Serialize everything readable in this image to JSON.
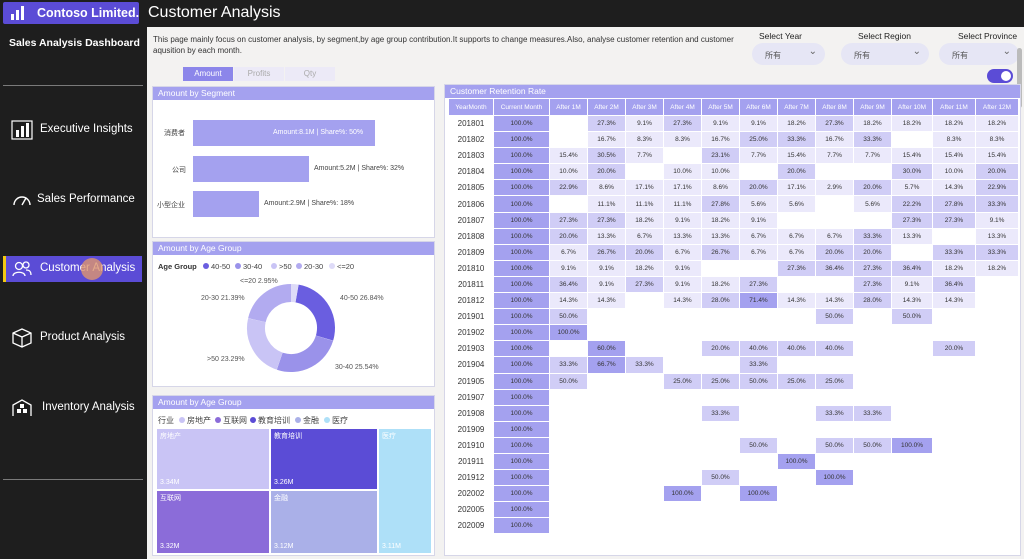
{
  "app": {
    "logo_text": "Contoso Limited.",
    "dashboard_title": "Sales Analysis Dashboard",
    "page_title": "Customer Analysis"
  },
  "colors": {
    "accent": "#5b4cd6",
    "sidebar": "#1e1e1e",
    "panel_header": "#a4a1ef",
    "active_marker": "#f2c811"
  },
  "nav": [
    {
      "label": "Executive Insights",
      "icon": "bar-chart-icon"
    },
    {
      "label": "Sales Performance",
      "icon": "gauge-icon"
    },
    {
      "label": "Customer Analysis",
      "icon": "users-icon",
      "active": true
    },
    {
      "label": "Product Analysis",
      "icon": "box-icon"
    },
    {
      "label": "Inventory Analysis",
      "icon": "warehouse-icon"
    }
  ],
  "description": "This page mainly focus on customer analysis, by segment,by age group contribution.It supports to change measures.Also, analyse customer retention and customer aqusition by each month.",
  "slicers": [
    {
      "label": "Select Year",
      "value": "所有"
    },
    {
      "label": "Select Region",
      "value": "所有"
    },
    {
      "label": "Select Province",
      "value": "所有"
    }
  ],
  "measure_tabs": [
    "Amount",
    "Profits",
    "Qty"
  ],
  "segment": {
    "title": "Amount by Segment",
    "items": [
      {
        "label": "消费者",
        "value_text": "Amount:8.1M | Share%: 50%",
        "share": 0.5
      },
      {
        "label": "公司",
        "value_text": "Amount:5.2M | Share%: 32%",
        "share": 0.32
      },
      {
        "label": "小型企业",
        "value_text": "Amount:2.9M | Share%: 18%",
        "share": 0.18
      }
    ]
  },
  "age": {
    "title": "Amount by Age Group",
    "legend_title": "Age Group",
    "legend": [
      {
        "label": "40-50",
        "color": "#6a5ee0"
      },
      {
        "label": "30-40",
        "color": "#9a92ea"
      },
      {
        "label": ">50",
        "color": "#c9c4f5"
      },
      {
        "label": "20-30",
        "color": "#b2abf0"
      },
      {
        "label": "<=20",
        "color": "#dedbf8"
      }
    ],
    "labels": {
      "d1": "<=20 2.95%",
      "d2": "40-50 26.84%",
      "d3": "20-30 21.39%",
      "d4": "30-40 25.54%",
      "d5": ">50 23.29%"
    }
  },
  "industry": {
    "title": "Amount by Age Group",
    "legend_title": "行业",
    "legend": [
      {
        "label": "房地产",
        "color": "#c9c4f5"
      },
      {
        "label": "互联网",
        "color": "#8b6cd9"
      },
      {
        "label": "教育培训",
        "color": "#5b4cd6"
      },
      {
        "label": "金融",
        "color": "#aab0e8"
      },
      {
        "label": "医疗",
        "color": "#aee0f8"
      }
    ],
    "cells": [
      {
        "name": "房地产",
        "value": "3.34M"
      },
      {
        "name": "教育培训",
        "value": "3.26M"
      },
      {
        "name": "医疗",
        "value": "3.11M"
      },
      {
        "name": "互联网",
        "value": "3.32M"
      },
      {
        "name": "金融",
        "value": "3.12M"
      }
    ]
  },
  "retention": {
    "title": "Customer Retention Rate",
    "headers": [
      "YearMonth",
      "Current Month",
      "After 1M",
      "After 2M",
      "After 3M",
      "After 4M",
      "After 5M",
      "After 6M",
      "After 7M",
      "After 8M",
      "After 9M",
      "After 10M",
      "After 11M",
      "After 12M"
    ],
    "rows": [
      [
        "201801",
        "100.0%",
        "",
        "27.3%",
        "9.1%",
        "27.3%",
        "9.1%",
        "9.1%",
        "18.2%",
        "27.3%",
        "18.2%",
        "18.2%",
        "18.2%",
        "18.2%"
      ],
      [
        "201802",
        "100.0%",
        "",
        "16.7%",
        "8.3%",
        "8.3%",
        "16.7%",
        "25.0%",
        "33.3%",
        "16.7%",
        "33.3%",
        "",
        "8.3%",
        "8.3%"
      ],
      [
        "201803",
        "100.0%",
        "15.4%",
        "30.5%",
        "7.7%",
        "",
        "23.1%",
        "7.7%",
        "15.4%",
        "7.7%",
        "7.7%",
        "15.4%",
        "15.4%",
        "15.4%"
      ],
      [
        "201804",
        "100.0%",
        "10.0%",
        "20.0%",
        "",
        "10.0%",
        "10.0%",
        "",
        "20.0%",
        "",
        "",
        "30.0%",
        "10.0%",
        "20.0%"
      ],
      [
        "201805",
        "100.0%",
        "22.9%",
        "8.6%",
        "17.1%",
        "17.1%",
        "8.6%",
        "20.0%",
        "17.1%",
        "2.9%",
        "20.0%",
        "5.7%",
        "14.3%",
        "22.9%"
      ],
      [
        "201806",
        "100.0%",
        "",
        "11.1%",
        "11.1%",
        "11.1%",
        "27.8%",
        "5.6%",
        "5.6%",
        "",
        "5.6%",
        "22.2%",
        "27.8%",
        "33.3%"
      ],
      [
        "201807",
        "100.0%",
        "27.3%",
        "27.3%",
        "18.2%",
        "9.1%",
        "18.2%",
        "9.1%",
        "",
        "",
        "",
        "27.3%",
        "27.3%",
        "9.1%"
      ],
      [
        "201808",
        "100.0%",
        "20.0%",
        "13.3%",
        "6.7%",
        "13.3%",
        "13.3%",
        "6.7%",
        "6.7%",
        "6.7%",
        "33.3%",
        "13.3%",
        "",
        "13.3%"
      ],
      [
        "201809",
        "100.0%",
        "6.7%",
        "26.7%",
        "20.0%",
        "6.7%",
        "26.7%",
        "6.7%",
        "6.7%",
        "20.0%",
        "20.0%",
        "",
        "33.3%",
        "33.3%"
      ],
      [
        "201810",
        "100.0%",
        "9.1%",
        "9.1%",
        "18.2%",
        "9.1%",
        "",
        "",
        "27.3%",
        "36.4%",
        "27.3%",
        "36.4%",
        "18.2%",
        "18.2%"
      ],
      [
        "201811",
        "100.0%",
        "36.4%",
        "9.1%",
        "27.3%",
        "9.1%",
        "18.2%",
        "27.3%",
        "",
        "",
        "27.3%",
        "9.1%",
        "36.4%",
        ""
      ],
      [
        "201812",
        "100.0%",
        "14.3%",
        "14.3%",
        "",
        "14.3%",
        "28.0%",
        "71.4%",
        "14.3%",
        "14.3%",
        "28.0%",
        "14.3%",
        "14.3%",
        ""
      ],
      [
        "201901",
        "100.0%",
        "50.0%",
        "",
        "",
        "",
        "",
        "",
        "",
        "50.0%",
        "",
        "50.0%",
        "",
        ""
      ],
      [
        "201902",
        "100.0%",
        "100.0%",
        "",
        "",
        "",
        "",
        "",
        "",
        "",
        "",
        "",
        "",
        ""
      ],
      [
        "201903",
        "100.0%",
        "",
        "60.0%",
        "",
        "",
        "20.0%",
        "40.0%",
        "40.0%",
        "40.0%",
        "",
        "",
        "20.0%",
        ""
      ],
      [
        "201904",
        "100.0%",
        "33.3%",
        "66.7%",
        "33.3%",
        "",
        "",
        "33.3%",
        "",
        "",
        "",
        "",
        "",
        ""
      ],
      [
        "201905",
        "100.0%",
        "50.0%",
        "",
        "",
        "25.0%",
        "25.0%",
        "50.0%",
        "25.0%",
        "25.0%",
        "",
        "",
        "",
        ""
      ],
      [
        "201907",
        "100.0%",
        "",
        "",
        "",
        "",
        "",
        "",
        "",
        "",
        "",
        "",
        "",
        ""
      ],
      [
        "201908",
        "100.0%",
        "",
        "",
        "",
        "",
        "33.3%",
        "",
        "",
        "33.3%",
        "33.3%",
        "",
        "",
        ""
      ],
      [
        "201909",
        "100.0%",
        "",
        "",
        "",
        "",
        "",
        "",
        "",
        "",
        "",
        "",
        "",
        ""
      ],
      [
        "201910",
        "100.0%",
        "",
        "",
        "",
        "",
        "",
        "50.0%",
        "",
        "50.0%",
        "50.0%",
        "100.0%",
        "",
        ""
      ],
      [
        "201911",
        "100.0%",
        "",
        "",
        "",
        "",
        "",
        "",
        "100.0%",
        "",
        "",
        "",
        "",
        ""
      ],
      [
        "201912",
        "100.0%",
        "",
        "",
        "",
        "",
        "50.0%",
        "",
        "",
        "100.0%",
        "",
        "",
        "",
        ""
      ],
      [
        "202002",
        "100.0%",
        "",
        "",
        "",
        "100.0%",
        "",
        "100.0%",
        "",
        "",
        "",
        "",
        "",
        ""
      ],
      [
        "202005",
        "100.0%",
        "",
        "",
        "",
        "",
        "",
        "",
        "",
        "",
        "",
        "",
        "",
        ""
      ],
      [
        "202009",
        "100.0%",
        "",
        "",
        "",
        "",
        "",
        "",
        "",
        "",
        "",
        "",
        "",
        ""
      ]
    ]
  }
}
